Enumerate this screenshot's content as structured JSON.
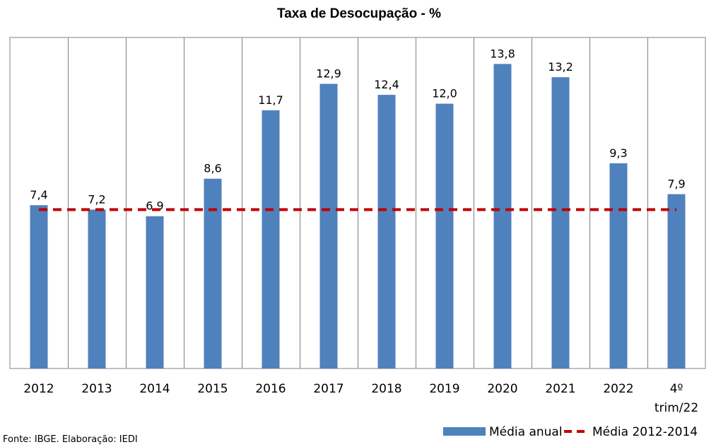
{
  "chart_data": {
    "type": "bar",
    "title": "Taxa de Desocupação - %",
    "categories": [
      "2012",
      "2013",
      "2014",
      "2015",
      "2016",
      "2017",
      "2018",
      "2019",
      "2020",
      "2021",
      "2022",
      "4º trim/22"
    ],
    "series": [
      {
        "name": "Média anual",
        "type": "bar",
        "color": "#4F81BD",
        "values": [
          7.4,
          7.2,
          6.9,
          8.6,
          11.7,
          12.9,
          12.4,
          12.0,
          13.8,
          13.2,
          9.3,
          7.9
        ],
        "data_labels": [
          "7,4",
          "7,2",
          "6,9",
          "8,6",
          "11,7",
          "12,9",
          "12,4",
          "12,0",
          "13,8",
          "13,2",
          "9,3",
          "7,9"
        ]
      },
      {
        "name": "Média 2012-2014",
        "type": "line",
        "style": "dashed",
        "color": "#C00000",
        "value": 7.2
      }
    ],
    "xlabel": "",
    "ylabel": "",
    "ylim": [
      0,
      15
    ],
    "grid": "vertical separators",
    "legend": "bottom-right"
  },
  "source": "Fonte: IBGE. Elaboração: IEDI"
}
